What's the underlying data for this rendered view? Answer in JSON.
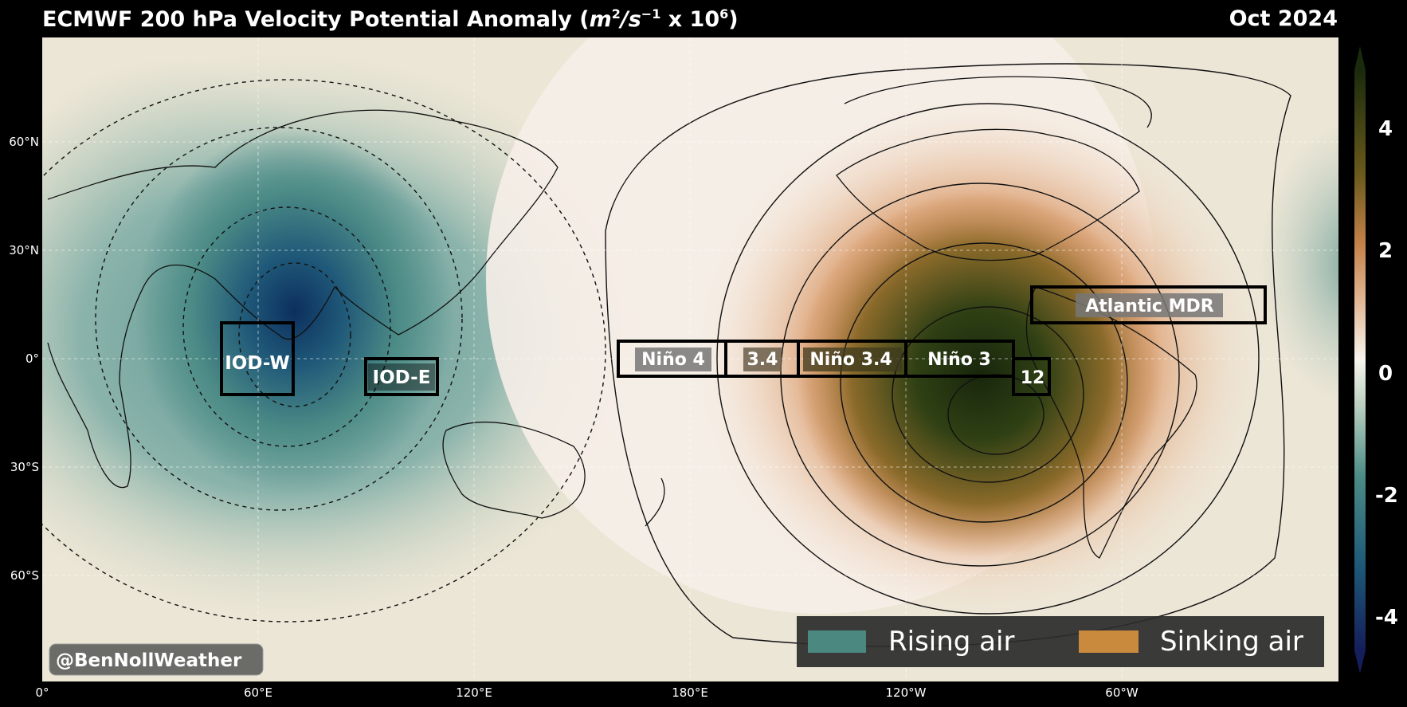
{
  "title": {
    "text": "ECMWF 200 hPa Velocity Potential Anomaly (",
    "unit_base": "m",
    "unit_mid": "/s",
    "unit_tail": " x 10",
    "exp_2": "2",
    "exp_m1": "−1",
    "exp_6": "6",
    "close": ")"
  },
  "date": "Oct 2024",
  "lat_ticks": [
    "60°N",
    "30°N",
    "0°",
    "30°S",
    "60°S"
  ],
  "lon_ticks": [
    "0°",
    "60°E",
    "120°E",
    "180°E",
    "120°W",
    "60°W"
  ],
  "regions": [
    {
      "id": "iod-w",
      "label": "IOD-W"
    },
    {
      "id": "iod-e",
      "label": "IOD-E"
    },
    {
      "id": "nino4",
      "label": "Niño 4"
    },
    {
      "id": "n34a",
      "label": "3.4"
    },
    {
      "id": "nino34",
      "label": "Niño 3.4"
    },
    {
      "id": "nino3",
      "label": "Niño 3"
    },
    {
      "id": "nino12",
      "label": "12"
    },
    {
      "id": "mdr",
      "label": "Atlantic MDR"
    }
  ],
  "legend": {
    "rising": {
      "label": "Rising air",
      "color": "#4a8880"
    },
    "sinking": {
      "label": "Sinking air",
      "color": "#c98a3e"
    }
  },
  "colorbar": {
    "ticks": [
      "4",
      "2",
      "0",
      "-2",
      "-4"
    ],
    "min": -5,
    "max": 5
  },
  "credit": "@BenNollWeather",
  "colors": {
    "rising_strong": "#0c2f5e",
    "rising": "#3e7f7e",
    "neutral": "#f5efe4",
    "sinking": "#c4824a",
    "sinking_strong": "#1e2e10"
  }
}
